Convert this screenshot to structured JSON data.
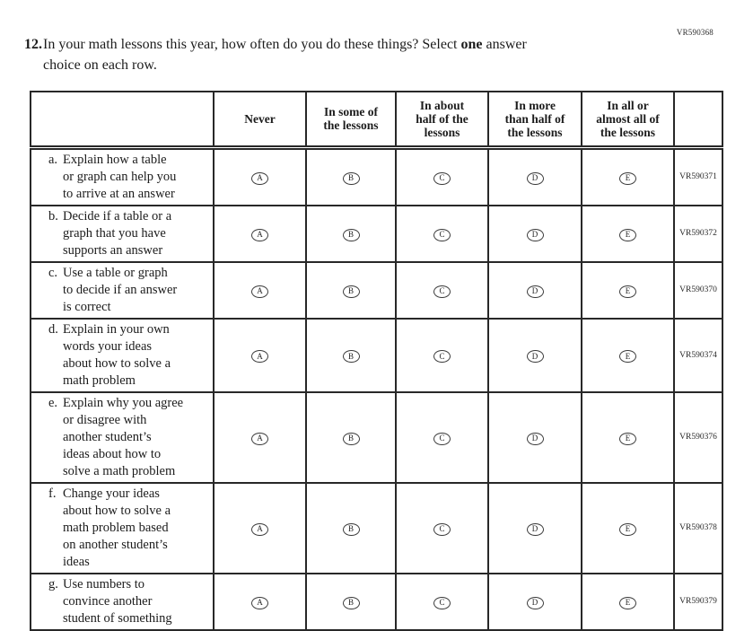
{
  "page": {
    "top_right_code": "VR590368"
  },
  "question": {
    "number": "12.",
    "line1_before_bold": "In your math lessons this year, how often do you do these things? Select ",
    "line1_bold": "one",
    "line1_after_bold": " answer",
    "line2": "choice on each row."
  },
  "table": {
    "choice_columns": [
      "Never",
      "In some of\nthe lessons",
      "In about\nhalf of the\nlessons",
      "In more\nthan half of\nthe lessons",
      "In all or\nalmost all of\nthe lessons"
    ],
    "choice_letters": [
      "A",
      "B",
      "C",
      "D",
      "E"
    ],
    "rows": [
      {
        "letter": "a.",
        "text": "Explain how a table\nor graph can help you\nto arrive at an answer",
        "code": "VR590371"
      },
      {
        "letter": "b.",
        "text": "Decide if a table or a\ngraph that you have\nsupports an answer",
        "code": "VR590372"
      },
      {
        "letter": "c.",
        "text": "Use a table or graph\nto decide if an answer\nis correct",
        "code": "VR590370"
      },
      {
        "letter": "d.",
        "text": "Explain in your own\nwords your ideas\nabout how to solve a\nmath problem",
        "code": "VR590374"
      },
      {
        "letter": "e.",
        "text": "Explain why you agree\nor disagree with\nanother student’s\nideas about how to\nsolve a math problem",
        "code": "VR590376"
      },
      {
        "letter": "f.",
        "text": "Change your ideas\nabout how to solve a\nmath problem based\non another student’s\nideas",
        "code": "VR590378"
      },
      {
        "letter": "g.",
        "text": "Use numbers to\nconvince another\nstudent of something",
        "code": "VR590379"
      }
    ]
  }
}
